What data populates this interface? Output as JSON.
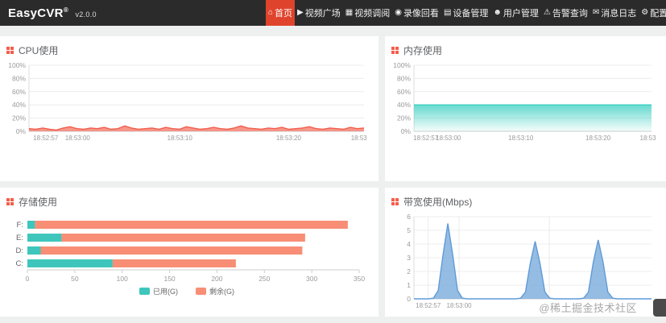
{
  "app": {
    "name": "EasyCVR",
    "registered_mark": "®",
    "version": "v2.0.0"
  },
  "nav": {
    "active_index": 0,
    "items": [
      {
        "label": "首页",
        "icon": "home-icon"
      },
      {
        "label": "视频广场",
        "icon": "video-plaza-icon"
      },
      {
        "label": "视频调阅",
        "icon": "video-review-icon"
      },
      {
        "label": "录像回看",
        "icon": "record-playback-icon"
      },
      {
        "label": "设备管理",
        "icon": "device-manage-icon"
      },
      {
        "label": "用户管理",
        "icon": "user-manage-icon"
      },
      {
        "label": "告警查询",
        "icon": "alarm-query-icon"
      },
      {
        "label": "消息日志",
        "icon": "message-log-icon"
      },
      {
        "label": "配置",
        "icon": "config-icon"
      }
    ]
  },
  "watermark": "@稀土掘金技术社区",
  "colors": {
    "navbar_bg": "#2b2b2b",
    "active_nav": "#e0432c",
    "panel_icon_red": "#f25e4c",
    "cpu_line": "#f25e4c",
    "memory_line": "#3fd0c3",
    "bandwidth_line": "#5f9bd8",
    "used_teal": "#3fc6bc",
    "free_salmon": "#f78e75"
  },
  "chart_data": [
    {
      "id": "cpu",
      "type": "area",
      "title": "CPU使用",
      "ylim": [
        0,
        100
      ],
      "ylabel_ticks": [
        "0%",
        "20%",
        "40%",
        "60%",
        "80%",
        "100%"
      ],
      "xticks": [
        {
          "label": "18:52:57",
          "pos": 0.05
        },
        {
          "label": "18:53:00",
          "pos": 0.145
        },
        {
          "label": "18:53:10",
          "pos": 0.45
        },
        {
          "label": "18:53:20",
          "pos": 0.775
        },
        {
          "label": "18:53",
          "pos": 0.985
        }
      ],
      "color": "#f25e4c",
      "fill": "rgba(244,116,100,0.75)",
      "gradient": false,
      "vgrid": false,
      "values": [
        4,
        3,
        5,
        3,
        2,
        5,
        7,
        4,
        3,
        5,
        4,
        6,
        3,
        4,
        8,
        5,
        3,
        4,
        5,
        3,
        6,
        4,
        3,
        7,
        5,
        3,
        4,
        6,
        4,
        3,
        5,
        8,
        5,
        4,
        3,
        5,
        4,
        6,
        3,
        4,
        5,
        7,
        4,
        3,
        5,
        4,
        3,
        6,
        4,
        5
      ]
    },
    {
      "id": "memory",
      "type": "area",
      "title": "内存使用",
      "ylim": [
        0,
        100
      ],
      "ylabel_ticks": [
        "0%",
        "20%",
        "40%",
        "60%",
        "80%",
        "100%"
      ],
      "xticks": [
        {
          "label": "18:52:57",
          "pos": 0.05
        },
        {
          "label": "18:53:00",
          "pos": 0.145
        },
        {
          "label": "18:53:10",
          "pos": 0.45
        },
        {
          "label": "18:53:20",
          "pos": 0.775
        },
        {
          "label": "18:53",
          "pos": 0.985
        }
      ],
      "color": "#3fd0c3",
      "gradient": true,
      "vgrid": false,
      "values": [
        40,
        40,
        40,
        40,
        40,
        40,
        40,
        40,
        40,
        40,
        40
      ]
    },
    {
      "id": "storage",
      "type": "hbar-stacked",
      "title": "存储使用",
      "categories": [
        "F:",
        "E:",
        "D:",
        "C:"
      ],
      "series": [
        {
          "name": "已用(G)",
          "color": "#3fc6bc",
          "values": [
            8,
            36,
            14,
            90
          ]
        },
        {
          "name": "剩余(G)",
          "color": "#f78e75",
          "values": [
            330,
            257,
            276,
            130
          ]
        }
      ],
      "xlim": [
        0,
        350
      ],
      "xticks": [
        0,
        50,
        100,
        150,
        200,
        250,
        300,
        350
      ],
      "legend_position": "bottom-center"
    },
    {
      "id": "bandwidth",
      "type": "area",
      "title": "带宽使用(Mbps)",
      "ylim": [
        0,
        6
      ],
      "ylabel_ticks": [
        "0",
        "1",
        "2",
        "3",
        "4",
        "5",
        "6"
      ],
      "xticks": [
        {
          "label": "18:52:57",
          "pos": 0.06
        },
        {
          "label": "18:53:00",
          "pos": 0.19
        },
        {
          "label": "",
          "pos": 0.57
        }
      ],
      "color": "#5f9bd8",
      "fill": "rgba(122,171,220,0.8)",
      "gradient": false,
      "vgrid": true,
      "values": [
        0,
        0,
        0,
        0,
        0.05,
        0.6,
        3.2,
        5.5,
        3.2,
        0.6,
        0.05,
        0,
        0,
        0,
        0,
        0,
        0,
        0,
        0,
        0,
        0,
        0,
        0.05,
        0.5,
        2.6,
        4.2,
        2.6,
        0.5,
        0.05,
        0,
        0,
        0,
        0,
        0,
        0,
        0.05,
        0.5,
        2.7,
        4.3,
        2.7,
        0.5,
        0.05,
        0,
        0,
        0,
        0,
        0,
        0,
        0,
        0
      ]
    }
  ]
}
